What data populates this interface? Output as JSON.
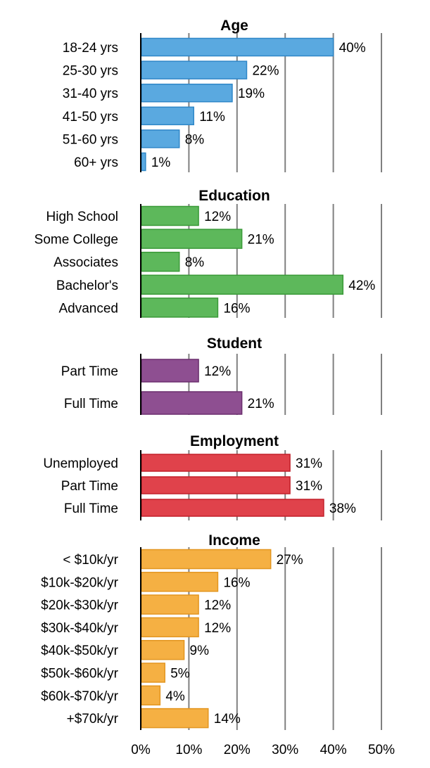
{
  "chart_data": [
    {
      "type": "bar",
      "orientation": "horizontal",
      "title": "Age",
      "color": "#5aa9e0",
      "border": "#2f87c8",
      "categories": [
        "18-24 yrs",
        "25-30 yrs",
        "31-40 yrs",
        "41-50 yrs",
        "51-60 yrs",
        "60+ yrs"
      ],
      "values": [
        40,
        22,
        19,
        11,
        8,
        1
      ],
      "value_labels": [
        "40%",
        "22%",
        "19%",
        "11%",
        "8%",
        "1%"
      ]
    },
    {
      "type": "bar",
      "orientation": "horizontal",
      "title": "Education",
      "color": "#5db85b",
      "border": "#3a9a38",
      "categories": [
        "High School",
        "Some College",
        "Associates",
        "Bachelor's",
        "Advanced"
      ],
      "values": [
        12,
        21,
        8,
        42,
        16
      ],
      "value_labels": [
        "12%",
        "21%",
        "8%",
        "42%",
        "16%"
      ]
    },
    {
      "type": "bar",
      "orientation": "horizontal",
      "title": "Student",
      "color": "#8e4f91",
      "border": "#6b2f6e",
      "categories": [
        "Part Time",
        "Full Time"
      ],
      "values": [
        12,
        21
      ],
      "value_labels": [
        "12%",
        "21%"
      ]
    },
    {
      "type": "bar",
      "orientation": "horizontal",
      "title": "Employment",
      "color": "#e0424b",
      "border": "#c21f29",
      "categories": [
        "Unemployed",
        "Part Time",
        "Full Time"
      ],
      "values": [
        31,
        31,
        38
      ],
      "value_labels": [
        "31%",
        "31%",
        "38%"
      ]
    },
    {
      "type": "bar",
      "orientation": "horizontal",
      "title": "Income",
      "color": "#f5b043",
      "border": "#e39620",
      "categories": [
        "< $10k/yr",
        "$10k-$20k/yr",
        "$20k-$30k/yr",
        "$30k-$40k/yr",
        "$40k-$50k/yr",
        "$50k-$60k/yr",
        "$60k-$70k/yr",
        "+$70k/yr"
      ],
      "values": [
        27,
        16,
        12,
        12,
        9,
        5,
        4,
        14
      ],
      "value_labels": [
        "27%",
        "16%",
        "12%",
        "12%",
        "9%",
        "5%",
        "4%",
        "14%"
      ]
    }
  ],
  "x_axis": {
    "ticks": [
      0,
      10,
      20,
      30,
      40,
      50
    ],
    "tick_labels": [
      "0%",
      "10%",
      "20%",
      "30%",
      "40%",
      "50%"
    ],
    "xlim": [
      0,
      50
    ],
    "grid": true
  }
}
